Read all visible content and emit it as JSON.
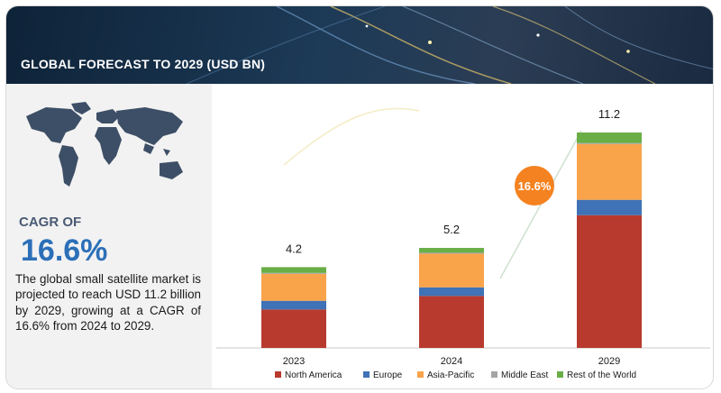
{
  "header": {
    "title": "GLOBAL FORECAST TO 2029 (USD BN)"
  },
  "summary": {
    "cagr_label": "CAGR OF",
    "cagr_value": "16.6%",
    "description": "The global small satellite market is projected to reach USD 11.2 billion by 2029, growing at a CAGR of 16.6% from 2024 to 2029."
  },
  "badge": {
    "text": "16.6%",
    "color": "#f58220"
  },
  "chart_data": {
    "type": "bar",
    "stacked": true,
    "categories": [
      "2023",
      "2024",
      "2029"
    ],
    "totals_labels": [
      "4.2",
      "5.2",
      "11.2"
    ],
    "series": [
      {
        "name": "North America",
        "color": "#b83a2e",
        "values": [
          2.0,
          2.7,
          6.9
        ]
      },
      {
        "name": "Europe",
        "color": "#3f72b6",
        "values": [
          0.45,
          0.45,
          0.8
        ]
      },
      {
        "name": "Asia-Pacific",
        "color": "#f9a34b",
        "values": [
          1.4,
          1.75,
          2.9
        ]
      },
      {
        "name": "Middle East",
        "color": "#a5a5a5",
        "values": [
          0.05,
          0.05,
          0.05
        ]
      },
      {
        "name": "Rest of the World",
        "color": "#6aae47",
        "values": [
          0.3,
          0.25,
          0.55
        ]
      }
    ],
    "ylim": [
      0,
      11.2
    ],
    "legend_position": "bottom"
  }
}
